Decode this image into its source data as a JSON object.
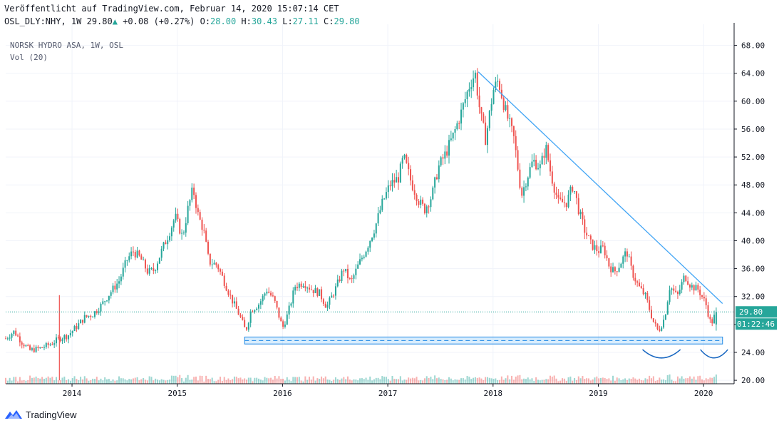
{
  "header": {
    "published": "Veröffentlicht auf TradingView.com, Februar 14, 2020 15:07:14 CET",
    "symbol": "OSL_DLY:NHY, 1W",
    "last": "29.80",
    "change_arrow": "▲",
    "change": "+0.08",
    "change_pct": "(+0.27%)",
    "o_label": "O:",
    "o": "28.00",
    "h_label": "H:",
    "h": "30.43",
    "l_label": "L:",
    "l": "27.11",
    "c_label": "C:",
    "c": "29.80"
  },
  "legend": {
    "title": "NORSK HYDRO ASA, 1W, OSL",
    "volume": "Vol (20)"
  },
  "branding": "TradingView",
  "chart_data": {
    "type": "candlestick",
    "ylim": [
      19.5,
      70
    ],
    "y_ticks": [
      "68.00",
      "64.00",
      "60.00",
      "56.00",
      "52.00",
      "48.00",
      "44.00",
      "40.00",
      "36.00",
      "32.00",
      "28.00",
      "24.00",
      "20.00"
    ],
    "x_ticks": [
      "2014",
      "2015",
      "2016",
      "2017",
      "2018",
      "2019",
      "2020"
    ],
    "x_range": [
      2013.37,
      2020.29
    ],
    "anchors": [
      [
        2013.37,
        26.0
      ],
      [
        2013.45,
        27.0
      ],
      [
        2013.52,
        25.5
      ],
      [
        2013.6,
        24.3
      ],
      [
        2013.7,
        24.6
      ],
      [
        2013.8,
        25.2
      ],
      [
        2013.88,
        26.0
      ],
      [
        2013.96,
        26.4
      ],
      [
        2014.05,
        27.8
      ],
      [
        2014.12,
        29.0
      ],
      [
        2014.2,
        29.5
      ],
      [
        2014.28,
        30.8
      ],
      [
        2014.35,
        32.3
      ],
      [
        2014.45,
        34.3
      ],
      [
        2014.52,
        37.2
      ],
      [
        2014.58,
        38.5
      ],
      [
        2014.65,
        37.5
      ],
      [
        2014.72,
        35.5
      ],
      [
        2014.78,
        35.8
      ],
      [
        2014.85,
        38.5
      ],
      [
        2014.92,
        41.0
      ],
      [
        2014.98,
        43.5
      ],
      [
        2015.05,
        40.5
      ],
      [
        2015.1,
        44.5
      ],
      [
        2015.15,
        47.5
      ],
      [
        2015.2,
        43.5
      ],
      [
        2015.25,
        41.5
      ],
      [
        2015.3,
        37.0
      ],
      [
        2015.38,
        36.5
      ],
      [
        2015.45,
        34.0
      ],
      [
        2015.52,
        31.5
      ],
      [
        2015.6,
        29.0
      ],
      [
        2015.65,
        27.0
      ],
      [
        2015.7,
        30.0
      ],
      [
        2015.78,
        31.0
      ],
      [
        2015.85,
        33.0
      ],
      [
        2015.92,
        31.5
      ],
      [
        2016.0,
        27.5
      ],
      [
        2016.05,
        29.5
      ],
      [
        2016.12,
        33.5
      ],
      [
        2016.2,
        34.0
      ],
      [
        2016.28,
        33.0
      ],
      [
        2016.35,
        32.5
      ],
      [
        2016.42,
        30.5
      ],
      [
        2016.5,
        33.0
      ],
      [
        2016.58,
        36.0
      ],
      [
        2016.65,
        34.0
      ],
      [
        2016.72,
        36.5
      ],
      [
        2016.8,
        39.0
      ],
      [
        2016.88,
        42.0
      ],
      [
        2016.95,
        45.5
      ],
      [
        2017.02,
        48.0
      ],
      [
        2017.1,
        49.0
      ],
      [
        2017.15,
        52.0
      ],
      [
        2017.22,
        48.5
      ],
      [
        2017.3,
        45.5
      ],
      [
        2017.35,
        44.5
      ],
      [
        2017.42,
        46.5
      ],
      [
        2017.48,
        50.5
      ],
      [
        2017.55,
        52.5
      ],
      [
        2017.62,
        55.0
      ],
      [
        2017.7,
        58.5
      ],
      [
        2017.78,
        62.5
      ],
      [
        2017.83,
        64.0
      ],
      [
        2017.88,
        58.0
      ],
      [
        2017.93,
        54.5
      ],
      [
        2018.0,
        61.5
      ],
      [
        2018.05,
        63.0
      ],
      [
        2018.12,
        58.5
      ],
      [
        2018.2,
        54.5
      ],
      [
        2018.27,
        46.5
      ],
      [
        2018.32,
        49.0
      ],
      [
        2018.38,
        51.5
      ],
      [
        2018.45,
        50.5
      ],
      [
        2018.5,
        53.5
      ],
      [
        2018.55,
        49.5
      ],
      [
        2018.62,
        45.5
      ],
      [
        2018.7,
        45.5
      ],
      [
        2018.76,
        48.0
      ],
      [
        2018.82,
        44.0
      ],
      [
        2018.87,
        41.5
      ],
      [
        2018.93,
        39.5
      ],
      [
        2019.0,
        38.5
      ],
      [
        2019.05,
        39.0
      ],
      [
        2019.1,
        36.5
      ],
      [
        2019.15,
        35.5
      ],
      [
        2019.2,
        36.5
      ],
      [
        2019.27,
        38.5
      ],
      [
        2019.32,
        35.5
      ],
      [
        2019.38,
        33.5
      ],
      [
        2019.45,
        32.0
      ],
      [
        2019.52,
        28.5
      ],
      [
        2019.57,
        27.0
      ],
      [
        2019.63,
        29.0
      ],
      [
        2019.68,
        33.5
      ],
      [
        2019.75,
        32.0
      ],
      [
        2019.82,
        35.0
      ],
      [
        2019.88,
        33.5
      ],
      [
        2019.95,
        33.0
      ],
      [
        2020.02,
        31.0
      ],
      [
        2020.07,
        28.0
      ],
      [
        2020.12,
        29.8
      ]
    ],
    "spike_candle": {
      "date": 2013.88,
      "high": 32.2,
      "low": 20.0
    },
    "last_price": 29.8,
    "last_label": "29.80",
    "countdown": "01:22:46",
    "trendline": {
      "from": [
        2017.86,
        64.2
      ],
      "to": [
        2020.18,
        31.0
      ]
    },
    "support_zone": [
      25.2,
      26.2
    ],
    "support_x": [
      2015.64,
      2020.18
    ],
    "arcs": [
      {
        "x": [
          2019.42,
          2019.78
        ],
        "y": 24.4,
        "depth": 1.2
      },
      {
        "x": [
          2019.97,
          2020.23
        ],
        "y": 24.4,
        "depth": 1.2
      }
    ],
    "volume_ylim": [
      0,
      1
    ],
    "colors": {
      "up": "#26a69a",
      "down": "#ef5350",
      "vol_up": "#26a69a",
      "vol_down": "#ef5350",
      "trend": "#42a5f5",
      "support": "#1e88e5",
      "grid": "#f0f3fa",
      "price_line": "#26a69a",
      "countdown_bg": "#26a69a"
    }
  }
}
